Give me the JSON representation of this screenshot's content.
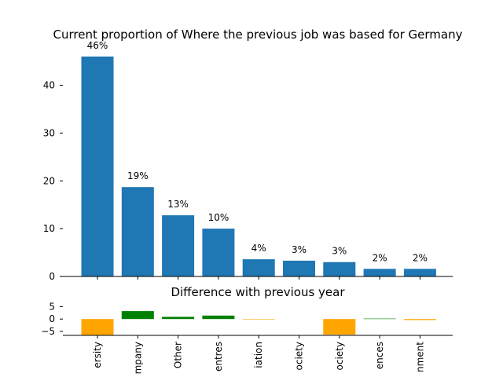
{
  "chart_data": [
    {
      "type": "bar",
      "title": "Current proportion of Where the previous job was based for Germany",
      "categories": [
        "ersity",
        "mpany",
        "Other",
        "entres",
        "iation",
        "ociety",
        "ociety",
        "ences",
        "nment"
      ],
      "values": [
        46,
        18.7,
        12.8,
        10,
        3.6,
        3.3,
        3,
        1.6,
        1.6
      ],
      "data_labels": [
        "46%",
        "19%",
        "13%",
        "10%",
        "4%",
        "3%",
        "3%",
        "2%",
        "2%"
      ],
      "ylim": [
        0,
        46
      ],
      "yticks": [
        0,
        10,
        20,
        30,
        40
      ],
      "color": "#1f77b4",
      "grid": false
    },
    {
      "type": "bar",
      "title": "Difference with previous year",
      "categories": [
        "ersity",
        "mpany",
        "Other",
        "entres",
        "iation",
        "ociety",
        "ociety",
        "ences",
        "nment"
      ],
      "values": [
        -6.4,
        3.2,
        0.9,
        1.4,
        -0.2,
        0,
        -6.3,
        0.2,
        -0.4
      ],
      "ylim": [
        -6.6,
        3.2
      ],
      "yticks": [
        -5,
        0,
        5
      ],
      "ytick_labels": [
        "−5",
        "0",
        "5"
      ],
      "positive_color": "#008000",
      "negative_color": "#ffa500",
      "x_tick_rotation": "vertical",
      "grid": false
    }
  ]
}
